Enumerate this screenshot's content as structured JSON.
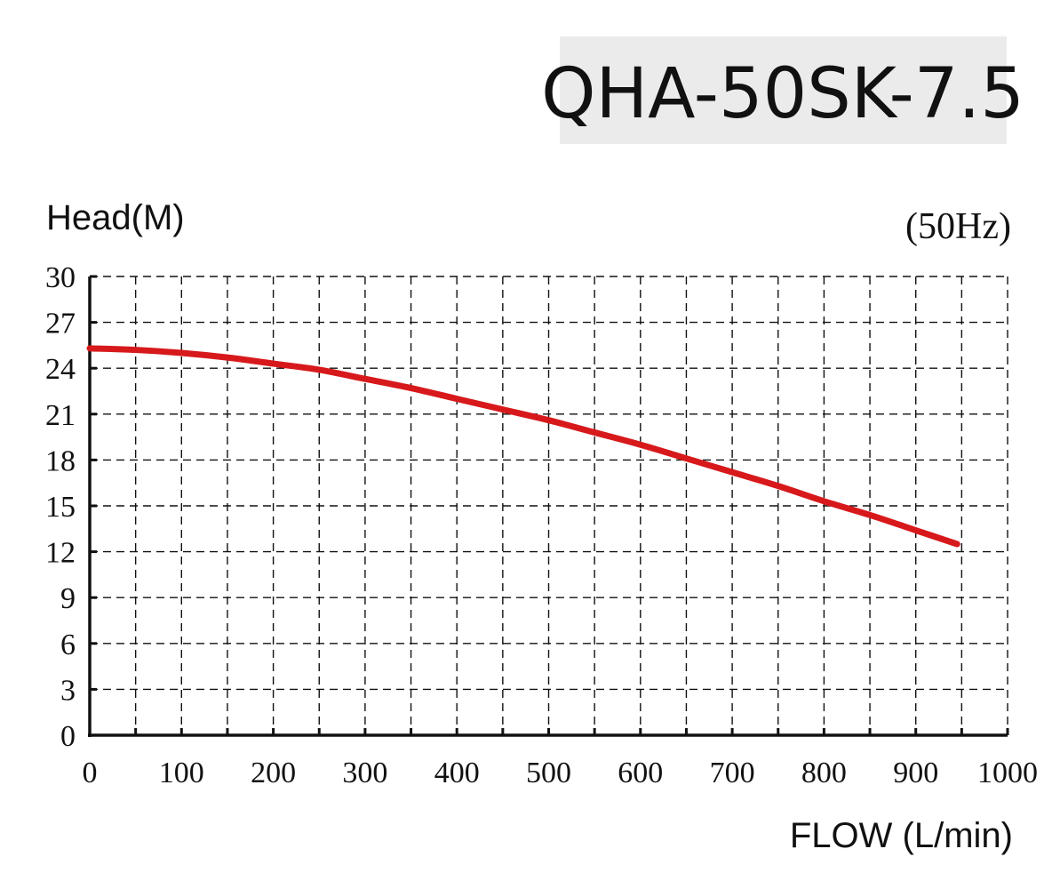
{
  "chart_data": {
    "type": "line",
    "title": "QHA-50SK-7.5",
    "subtitle": "(50Hz)",
    "xlabel": "FLOW (L/min)",
    "ylabel": "Head(M)",
    "xlim": [
      0,
      1000
    ],
    "ylim": [
      0,
      30
    ],
    "x_ticks": [
      "0",
      "100",
      "200",
      "300",
      "400",
      "500",
      "600",
      "700",
      "800",
      "900",
      "1000"
    ],
    "y_ticks": [
      "0",
      "3",
      "6",
      "9",
      "12",
      "15",
      "18",
      "21",
      "24",
      "27",
      "30"
    ],
    "grid": true,
    "grid_x_step": 50,
    "grid_y_step": 3,
    "series": [
      {
        "color": "#d7191c",
        "x": [
          0,
          50,
          100,
          150,
          200,
          250,
          300,
          350,
          400,
          450,
          500,
          550,
          600,
          650,
          700,
          750,
          800,
          850,
          900,
          945
        ],
        "values": [
          25.3,
          25.2,
          25.0,
          24.7,
          24.3,
          23.9,
          23.3,
          22.7,
          22.0,
          21.3,
          20.6,
          19.8,
          19.0,
          18.1,
          17.2,
          16.3,
          15.3,
          14.4,
          13.4,
          12.5
        ]
      }
    ]
  }
}
